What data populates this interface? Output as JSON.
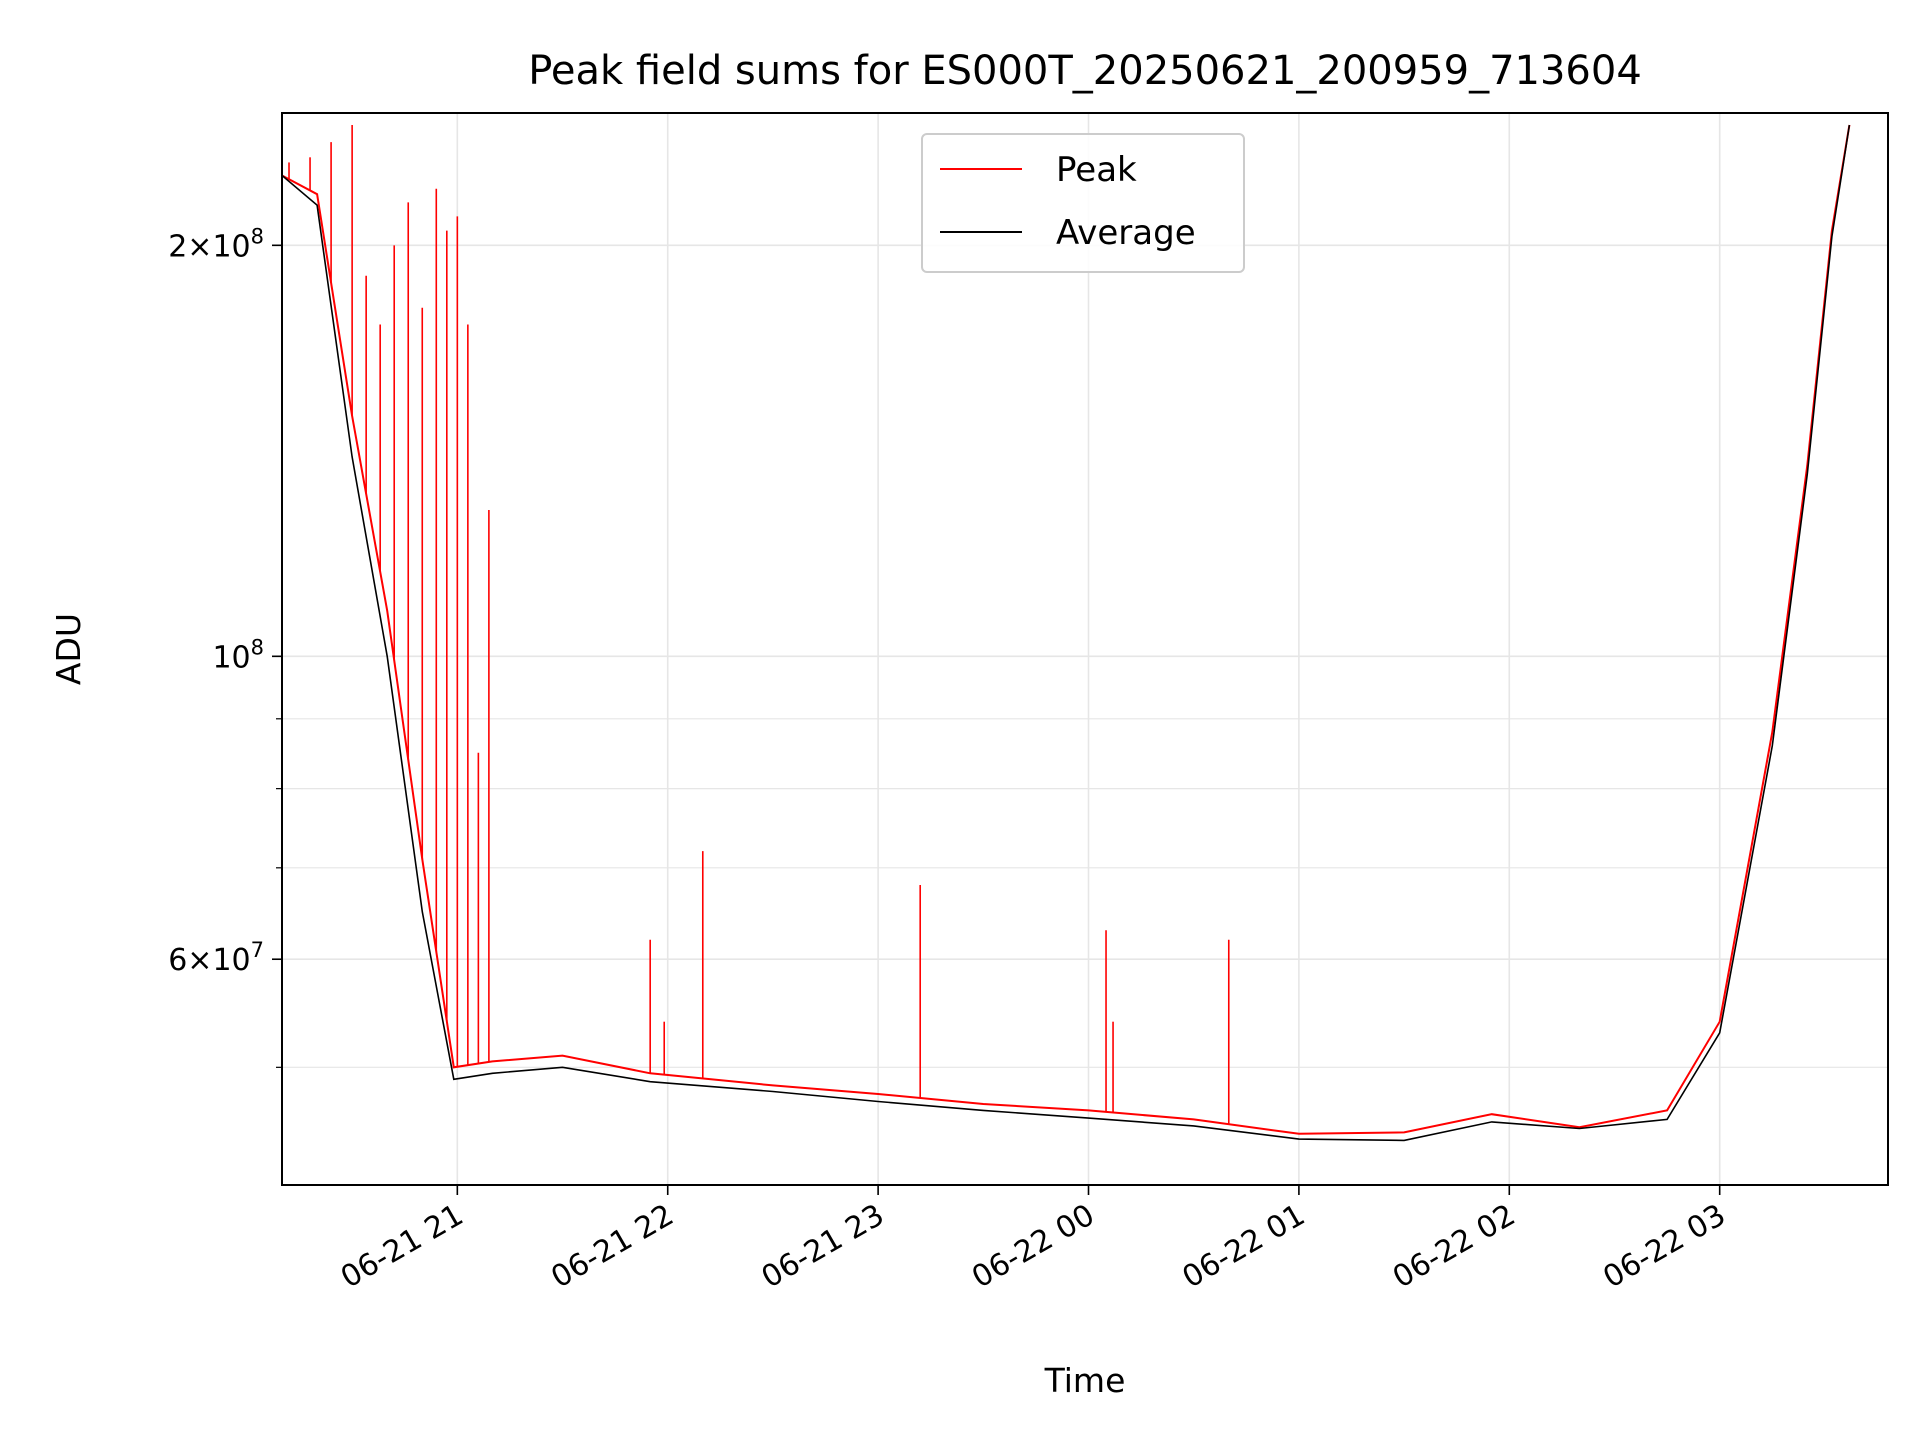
{
  "chart_data": {
    "type": "line",
    "title": "Peak field sums for ES000T_20250621_200959_713604",
    "xlabel": "Time",
    "ylabel": "ADU",
    "yscale": "log",
    "grid": true,
    "legend_position": "top-center",
    "xlim": [
      "2025-06-21 20:10",
      "2025-06-22 03:48"
    ],
    "ylim": [
      41000000,
      250000000
    ],
    "x_ticks": [
      {
        "value": "2025-06-21 21:00",
        "label": "06-21 21"
      },
      {
        "value": "2025-06-21 22:00",
        "label": "06-21 22"
      },
      {
        "value": "2025-06-21 23:00",
        "label": "06-21 23"
      },
      {
        "value": "2025-06-22 00:00",
        "label": "06-22 00"
      },
      {
        "value": "2025-06-22 01:00",
        "label": "06-22 01"
      },
      {
        "value": "2025-06-22 02:00",
        "label": "06-22 02"
      },
      {
        "value": "2025-06-22 03:00",
        "label": "06-22 03"
      }
    ],
    "y_major_ticks": [
      {
        "value": 200000000,
        "mant": "2",
        "exp": "8"
      },
      {
        "value": 100000000,
        "mant": "",
        "exp": "8"
      },
      {
        "value": 60000000,
        "mant": "6",
        "exp": "7"
      }
    ],
    "y_minor_ticks": [
      50000000,
      70000000,
      80000000,
      90000000
    ],
    "colors": {
      "peak": "#ff0000",
      "average": "#000000",
      "grid": "#e6e6e6"
    },
    "series": [
      {
        "name": "Peak",
        "points": [
          [
            "2025-06-21 20:10",
            225000000
          ],
          [
            "2025-06-21 20:20",
            218000000
          ],
          [
            "2025-06-21 20:30",
            150000000
          ],
          [
            "2025-06-21 20:40",
            108000000
          ],
          [
            "2025-06-21 20:50",
            71000000
          ],
          [
            "2025-06-21 20:59",
            50000000
          ],
          [
            "2025-06-21 21:10",
            50500000
          ],
          [
            "2025-06-21 21:30",
            51000000
          ],
          [
            "2025-06-21 21:55",
            49500000
          ],
          [
            "2025-06-21 22:30",
            48500000
          ],
          [
            "2025-06-21 23:00",
            47800000
          ],
          [
            "2025-06-21 23:30",
            47000000
          ],
          [
            "2025-06-22 00:00",
            46500000
          ],
          [
            "2025-06-22 00:30",
            45800000
          ],
          [
            "2025-06-22 01:00",
            44700000
          ],
          [
            "2025-06-22 01:30",
            44800000
          ],
          [
            "2025-06-22 01:55",
            46200000
          ],
          [
            "2025-06-22 02:20",
            45200000
          ],
          [
            "2025-06-22 02:45",
            46500000
          ],
          [
            "2025-06-22 03:00",
            54000000
          ],
          [
            "2025-06-22 03:15",
            88000000
          ],
          [
            "2025-06-22 03:25",
            138000000
          ],
          [
            "2025-06-22 03:32",
            205000000
          ],
          [
            "2025-06-22 03:37",
            245000000
          ]
        ],
        "spikes": [
          [
            "2025-06-21 20:12",
            230000000
          ],
          [
            "2025-06-21 20:18",
            232000000
          ],
          [
            "2025-06-21 20:24",
            238000000
          ],
          [
            "2025-06-21 20:30",
            245000000
          ],
          [
            "2025-06-21 20:34",
            190000000
          ],
          [
            "2025-06-21 20:38",
            175000000
          ],
          [
            "2025-06-21 20:42",
            200000000
          ],
          [
            "2025-06-21 20:46",
            215000000
          ],
          [
            "2025-06-21 20:50",
            180000000
          ],
          [
            "2025-06-21 20:54",
            220000000
          ],
          [
            "2025-06-21 20:57",
            205000000
          ],
          [
            "2025-06-21 21:00",
            210000000
          ],
          [
            "2025-06-21 21:03",
            175000000
          ],
          [
            "2025-06-21 21:06",
            85000000
          ],
          [
            "2025-06-21 21:09",
            128000000
          ],
          [
            "2025-06-21 21:55",
            62000000
          ],
          [
            "2025-06-21 21:59",
            54000000
          ],
          [
            "2025-06-21 22:10",
            72000000
          ],
          [
            "2025-06-21 23:12",
            68000000
          ],
          [
            "2025-06-22 00:05",
            63000000
          ],
          [
            "2025-06-22 00:07",
            54000000
          ],
          [
            "2025-06-22 00:40",
            62000000
          ]
        ]
      },
      {
        "name": "Average",
        "points": [
          [
            "2025-06-21 20:10",
            225000000
          ],
          [
            "2025-06-21 20:20",
            214000000
          ],
          [
            "2025-06-21 20:30",
            140000000
          ],
          [
            "2025-06-21 20:40",
            100000000
          ],
          [
            "2025-06-21 20:50",
            65000000
          ],
          [
            "2025-06-21 20:59",
            49000000
          ],
          [
            "2025-06-21 21:10",
            49500000
          ],
          [
            "2025-06-21 21:30",
            50000000
          ],
          [
            "2025-06-21 21:55",
            48800000
          ],
          [
            "2025-06-21 22:30",
            48000000
          ],
          [
            "2025-06-21 23:00",
            47200000
          ],
          [
            "2025-06-21 23:30",
            46500000
          ],
          [
            "2025-06-22 00:00",
            45900000
          ],
          [
            "2025-06-22 00:30",
            45300000
          ],
          [
            "2025-06-22 01:00",
            44300000
          ],
          [
            "2025-06-22 01:30",
            44200000
          ],
          [
            "2025-06-22 01:55",
            45600000
          ],
          [
            "2025-06-22 02:20",
            45100000
          ],
          [
            "2025-06-22 02:45",
            45800000
          ],
          [
            "2025-06-22 03:00",
            53000000
          ],
          [
            "2025-06-22 03:15",
            86000000
          ],
          [
            "2025-06-22 03:25",
            136000000
          ],
          [
            "2025-06-22 03:32",
            203000000
          ],
          [
            "2025-06-22 03:37",
            245000000
          ]
        ]
      }
    ]
  }
}
